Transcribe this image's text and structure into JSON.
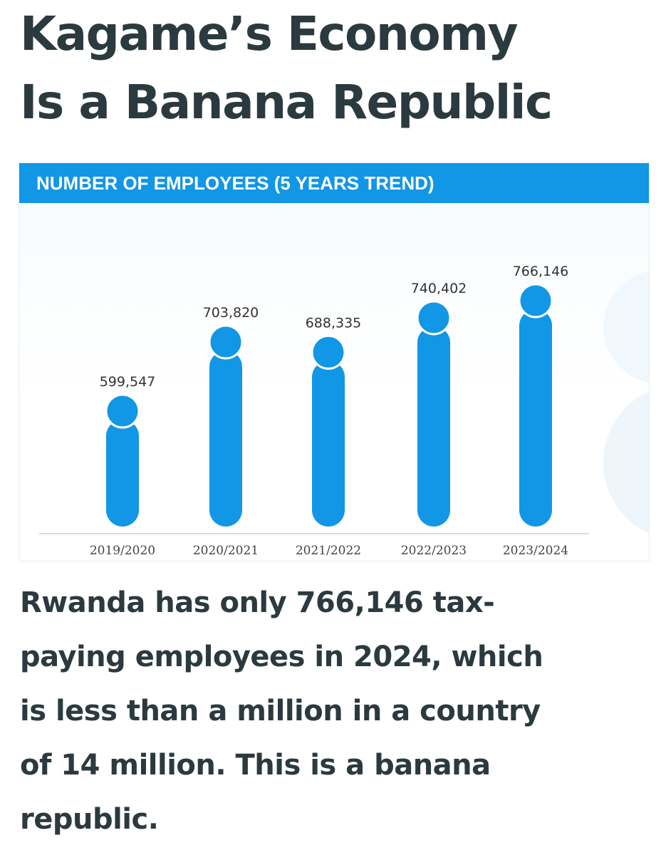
{
  "headline": {
    "line1": "Kagame’s Economy",
    "line2": "Is a Banana Republic"
  },
  "chart_data": {
    "type": "bar",
    "title": "NUMBER OF EMPLOYEES (5 YEARS TREND)",
    "categories": [
      "2019/2020",
      "2020/2021",
      "2021/2022",
      "2022/2023",
      "2023/2024"
    ],
    "values": [
      599547,
      703820,
      688335,
      740402,
      766146
    ],
    "data_labels": [
      "599,547",
      "703,820",
      "688,335",
      "740,402",
      "766,146"
    ],
    "xlabel": "",
    "ylabel": "",
    "grid": false,
    "legend": "none",
    "colors": {
      "bar": "#1296e6",
      "banner": "#1296e6",
      "baseline": "#bcd9ee"
    }
  },
  "body": {
    "line1": "Rwanda has only 766,146 tax-",
    "line2": "paying employees in 2024, which",
    "line3": "is less than a million in a country",
    "line4": "of 14 million. This is a banana",
    "line5": "republic."
  }
}
